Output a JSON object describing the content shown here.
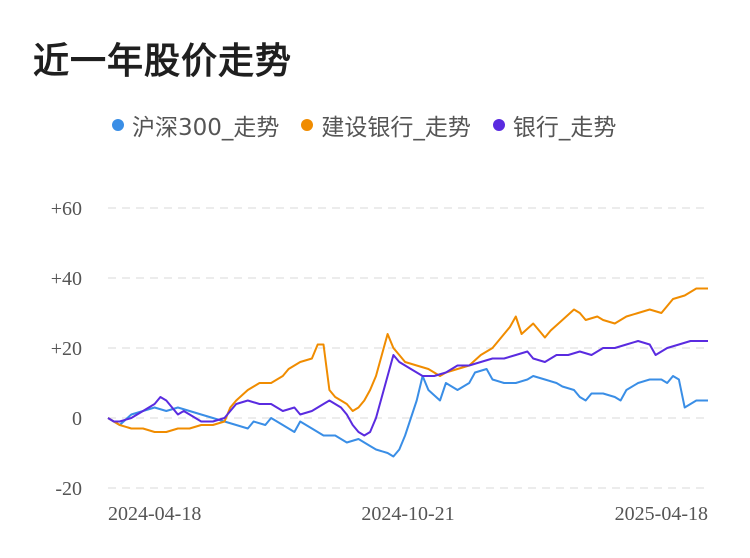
{
  "header": {
    "title": "近一年股价走势"
  },
  "chart_data": {
    "type": "line",
    "title": "近一年股价走势",
    "x_tick_labels": [
      "2024-04-18",
      "2024-10-21",
      "2025-04-18"
    ],
    "y_tick_labels": [
      "+60",
      "+40",
      "+20",
      "0",
      "-20"
    ],
    "y_ticks": [
      60,
      40,
      20,
      0,
      -20
    ],
    "ylim": [
      -20,
      60
    ],
    "grid": true,
    "legend_position": "top",
    "series": [
      {
        "name": "沪深300_走势",
        "color": "#3a8ee6",
        "points": [
          [
            0,
            0
          ],
          [
            1,
            -1
          ],
          [
            2,
            -2
          ],
          [
            4,
            1
          ],
          [
            6,
            2
          ],
          [
            8,
            3
          ],
          [
            10,
            2
          ],
          [
            12,
            3
          ],
          [
            14,
            2
          ],
          [
            16,
            1
          ],
          [
            18,
            0
          ],
          [
            20,
            -1
          ],
          [
            22,
            -2
          ],
          [
            24,
            -3
          ],
          [
            25,
            -1
          ],
          [
            27,
            -2
          ],
          [
            28,
            0
          ],
          [
            30,
            -2
          ],
          [
            32,
            -4
          ],
          [
            33,
            -1
          ],
          [
            35,
            -3
          ],
          [
            37,
            -5
          ],
          [
            39,
            -5
          ],
          [
            41,
            -7
          ],
          [
            43,
            -6
          ],
          [
            45,
            -8
          ],
          [
            46,
            -9
          ],
          [
            48,
            -10
          ],
          [
            49,
            -11
          ],
          [
            50,
            -9
          ],
          [
            51,
            -5
          ],
          [
            52,
            0
          ],
          [
            53,
            5
          ],
          [
            54,
            12
          ],
          [
            55,
            8
          ],
          [
            57,
            5
          ],
          [
            58,
            10
          ],
          [
            60,
            8
          ],
          [
            62,
            10
          ],
          [
            63,
            13
          ],
          [
            65,
            14
          ],
          [
            66,
            11
          ],
          [
            68,
            10
          ],
          [
            70,
            10
          ],
          [
            72,
            11
          ],
          [
            73,
            12
          ],
          [
            75,
            11
          ],
          [
            77,
            10
          ],
          [
            78,
            9
          ],
          [
            80,
            8
          ],
          [
            81,
            6
          ],
          [
            82,
            5
          ],
          [
            83,
            7
          ],
          [
            85,
            7
          ],
          [
            87,
            6
          ],
          [
            88,
            5
          ],
          [
            89,
            8
          ],
          [
            91,
            10
          ],
          [
            93,
            11
          ],
          [
            95,
            11
          ],
          [
            96,
            10
          ],
          [
            97,
            12
          ],
          [
            98,
            11
          ],
          [
            99,
            3
          ],
          [
            100,
            4
          ],
          [
            101,
            5
          ],
          [
            103,
            5
          ]
        ]
      },
      {
        "name": "建设银行_走势",
        "color": "#f08c00",
        "points": [
          [
            0,
            0
          ],
          [
            1,
            -1
          ],
          [
            2,
            -2
          ],
          [
            4,
            -3
          ],
          [
            6,
            -3
          ],
          [
            8,
            -4
          ],
          [
            10,
            -4
          ],
          [
            12,
            -3
          ],
          [
            14,
            -3
          ],
          [
            16,
            -2
          ],
          [
            18,
            -2
          ],
          [
            20,
            -1
          ],
          [
            21,
            3
          ],
          [
            22,
            5
          ],
          [
            24,
            8
          ],
          [
            26,
            10
          ],
          [
            28,
            10
          ],
          [
            30,
            12
          ],
          [
            31,
            14
          ],
          [
            33,
            16
          ],
          [
            35,
            17
          ],
          [
            36,
            21
          ],
          [
            37,
            21
          ],
          [
            38,
            8
          ],
          [
            39,
            6
          ],
          [
            40,
            5
          ],
          [
            41,
            4
          ],
          [
            42,
            2
          ],
          [
            43,
            3
          ],
          [
            44,
            5
          ],
          [
            45,
            8
          ],
          [
            46,
            12
          ],
          [
            47,
            18
          ],
          [
            48,
            24
          ],
          [
            49,
            20
          ],
          [
            50,
            18
          ],
          [
            51,
            16
          ],
          [
            53,
            15
          ],
          [
            55,
            14
          ],
          [
            57,
            12
          ],
          [
            58,
            13
          ],
          [
            60,
            14
          ],
          [
            62,
            15
          ],
          [
            64,
            18
          ],
          [
            66,
            20
          ],
          [
            67,
            22
          ],
          [
            69,
            26
          ],
          [
            70,
            29
          ],
          [
            71,
            24
          ],
          [
            73,
            27
          ],
          [
            74,
            25
          ],
          [
            75,
            23
          ],
          [
            76,
            25
          ],
          [
            78,
            28
          ],
          [
            80,
            31
          ],
          [
            81,
            30
          ],
          [
            82,
            28
          ],
          [
            84,
            29
          ],
          [
            85,
            28
          ],
          [
            87,
            27
          ],
          [
            88,
            28
          ],
          [
            89,
            29
          ],
          [
            91,
            30
          ],
          [
            93,
            31
          ],
          [
            95,
            30
          ],
          [
            96,
            32
          ],
          [
            97,
            34
          ],
          [
            99,
            35
          ],
          [
            101,
            37
          ],
          [
            103,
            37
          ]
        ]
      },
      {
        "name": "银行_走势",
        "color": "#5a2be0",
        "points": [
          [
            0,
            0
          ],
          [
            1,
            -1
          ],
          [
            2,
            -1
          ],
          [
            4,
            0
          ],
          [
            6,
            2
          ],
          [
            8,
            4
          ],
          [
            9,
            6
          ],
          [
            10,
            5
          ],
          [
            11,
            3
          ],
          [
            12,
            1
          ],
          [
            13,
            2
          ],
          [
            14,
            1
          ],
          [
            15,
            0
          ],
          [
            16,
            -1
          ],
          [
            18,
            -1
          ],
          [
            20,
            0
          ],
          [
            21,
            2
          ],
          [
            22,
            4
          ],
          [
            24,
            5
          ],
          [
            26,
            4
          ],
          [
            28,
            4
          ],
          [
            30,
            2
          ],
          [
            32,
            3
          ],
          [
            33,
            1
          ],
          [
            35,
            2
          ],
          [
            37,
            4
          ],
          [
            38,
            5
          ],
          [
            39,
            4
          ],
          [
            40,
            3
          ],
          [
            41,
            1
          ],
          [
            42,
            -2
          ],
          [
            43,
            -4
          ],
          [
            44,
            -5
          ],
          [
            45,
            -4
          ],
          [
            46,
            0
          ],
          [
            47,
            6
          ],
          [
            48,
            12
          ],
          [
            49,
            18
          ],
          [
            50,
            16
          ],
          [
            52,
            14
          ],
          [
            54,
            12
          ],
          [
            56,
            12
          ],
          [
            58,
            13
          ],
          [
            60,
            15
          ],
          [
            62,
            15
          ],
          [
            64,
            16
          ],
          [
            66,
            17
          ],
          [
            68,
            17
          ],
          [
            70,
            18
          ],
          [
            72,
            19
          ],
          [
            73,
            17
          ],
          [
            75,
            16
          ],
          [
            77,
            18
          ],
          [
            79,
            18
          ],
          [
            81,
            19
          ],
          [
            83,
            18
          ],
          [
            85,
            20
          ],
          [
            87,
            20
          ],
          [
            89,
            21
          ],
          [
            91,
            22
          ],
          [
            93,
            21
          ],
          [
            94,
            18
          ],
          [
            95,
            19
          ],
          [
            96,
            20
          ],
          [
            98,
            21
          ],
          [
            100,
            22
          ],
          [
            101,
            22
          ],
          [
            103,
            22
          ]
        ]
      }
    ]
  }
}
